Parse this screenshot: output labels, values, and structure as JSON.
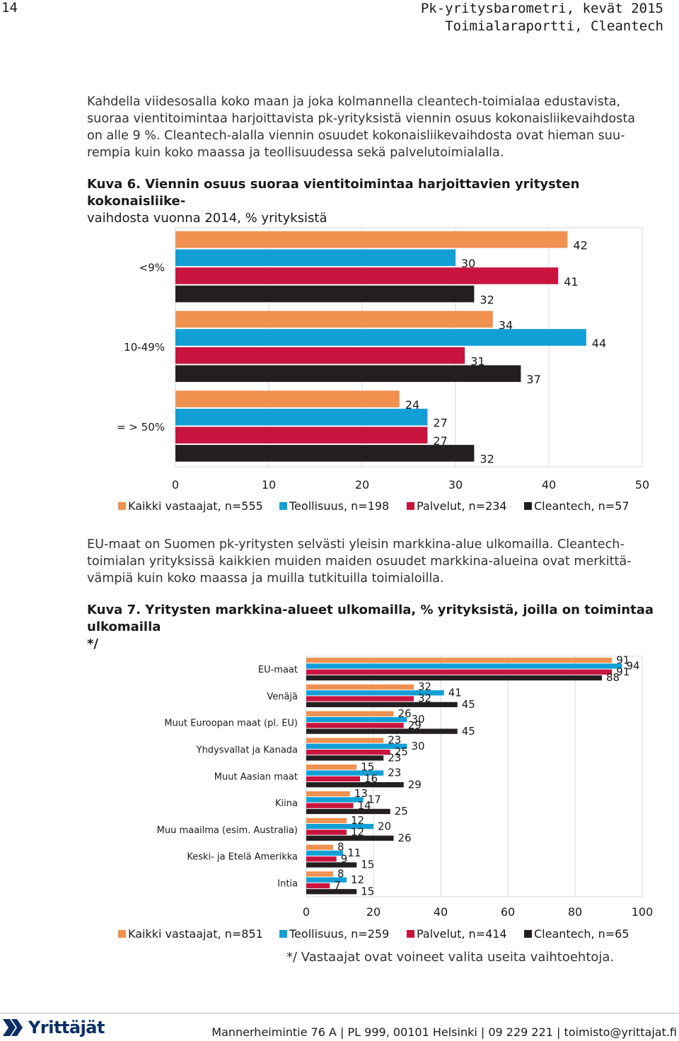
{
  "header": {
    "page_number": "14",
    "title_line1": "Pk-yritysbarometri, kevät 2015",
    "title_line2": "Toimialaraportti, Cleantech"
  },
  "paragraph1": [
    "Kahdella viidesosalla koko maan ja joka kolmannella cleantech-toimialaa edustavista,",
    "suoraa vientitoimintaa harjoittavista pk-yrityksistä viennin osuus kokonaisliikevaihdosta",
    "on alle 9 %. Cleantech-alalla viennin osuudet kokonaisliikevaihdosta ovat hieman suu-",
    "rempia kuin koko maassa ja teollisuudessa sekä palvelutoimialalla."
  ],
  "figure6_caption": [
    "Kuva 6. Viennin osuus suoraa vientitoimintaa harjoittavien yritysten kokonaisliike-",
    "vaihdosta vuonna 2014, % yrityksistä"
  ],
  "paragraph2": [
    "EU-maat on Suomen pk-yritysten selvästi yleisin markkina-alue ulkomailla. Cleantech-",
    "toimialan yrityksissä kaikkien muiden maiden osuudet markkina-alueina ovat merkittä-",
    "vämpiä kuin koko maassa ja muilla tutkituilla toimialoilla."
  ],
  "figure7_caption": [
    "Kuva 7. Yritysten markkina-alueet ulkomailla, % yrityksistä, joilla on toimintaa",
    "ulkomailla",
    "*/"
  ],
  "note": "*/ Vastaajat ovat voineet valita useita vaihtoehtoja.",
  "footer": {
    "logo_text": "Yrittäjät",
    "address": "Mannerheimintie 76 A | PL 999, 00101 Helsinki | 09 229 221 | toimisto@yrittajat.fi"
  },
  "colors": {
    "kaikki": "#f0914f",
    "teollisuus": "#129fd6",
    "palvelut": "#c8143f",
    "cleantech": "#231f20"
  },
  "chart_data": [
    {
      "type": "bar",
      "orientation": "horizontal",
      "categories": [
        "<9%",
        "10-49%",
        "= > 50%"
      ],
      "series": [
        {
          "name": "Kaikki vastaajat, n=555",
          "values": [
            42,
            34,
            24
          ]
        },
        {
          "name": "Teollisuus, n=198",
          "values": [
            30,
            44,
            27
          ]
        },
        {
          "name": "Palvelut, n=234",
          "values": [
            41,
            31,
            27
          ]
        },
        {
          "name": "Cleantech, n=57",
          "values": [
            32,
            37,
            32
          ]
        }
      ],
      "xlim": [
        0,
        50
      ],
      "xticks": [
        "0",
        "10",
        "20",
        "30",
        "40",
        "50"
      ],
      "grid": true,
      "legend": "bottom"
    },
    {
      "type": "bar",
      "orientation": "horizontal",
      "categories": [
        "EU-maat",
        "Venäjä",
        "Muut Euroopan maat (pl. EU)",
        "Yhdysvallat ja Kanada",
        "Muut Aasian maat",
        "Kiina",
        "Muu maailma (esim. Australia)",
        "Keski- ja Etelä Amerikka",
        "Intia"
      ],
      "series": [
        {
          "name": "Kaikki vastaajat, n=851",
          "values": [
            91,
            32,
            26,
            23,
            15,
            13,
            12,
            8,
            8
          ]
        },
        {
          "name": "Teollisuus, n=259",
          "values": [
            94,
            41,
            30,
            30,
            23,
            17,
            20,
            11,
            12
          ]
        },
        {
          "name": "Palvelut, n=414",
          "values": [
            91,
            32,
            29,
            25,
            16,
            14,
            12,
            9,
            7
          ]
        },
        {
          "name": "Cleantech, n=65",
          "values": [
            88,
            45,
            45,
            23,
            29,
            25,
            26,
            15,
            15
          ]
        }
      ],
      "xlim": [
        0,
        100
      ],
      "xticks": [
        "0",
        "20",
        "40",
        "60",
        "80",
        "100"
      ],
      "grid": true,
      "legend": "bottom"
    }
  ]
}
